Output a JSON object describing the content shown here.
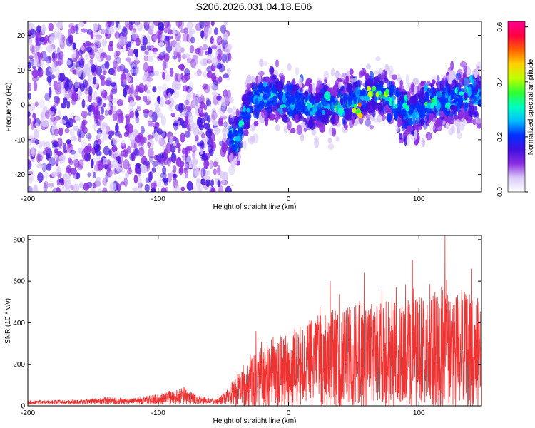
{
  "title": "S206.2026.031.04.18.E06",
  "chart_data": [
    {
      "type": "heatmap",
      "xlabel": "Height of straight line (km)",
      "ylabel": "Frequency (Hz)",
      "xlim": [
        -200,
        148
      ],
      "ylim": [
        -25,
        24
      ],
      "xticks": [
        -200,
        -100,
        0,
        100
      ],
      "xtick_labels": [
        "-200",
        "-100",
        "0",
        "100"
      ],
      "yticks": [
        -20,
        -10,
        0,
        10,
        20
      ],
      "ytick_labels": [
        "-20",
        "-10",
        "0",
        "10",
        "20"
      ],
      "grid": false,
      "colorbar": {
        "label": "Normalized spectral amplitude",
        "range": [
          0.0,
          0.62
        ],
        "ticks": [
          0.0,
          0.2,
          0.4,
          0.6
        ],
        "tick_labels": [
          "0.0",
          "0.2",
          "0.4",
          "0.6"
        ],
        "colors": [
          "#ffffff",
          "#d9c8f7",
          "#8a2be2",
          "#4010e0",
          "#0030ff",
          "#00bfff",
          "#00ffbf",
          "#30ff30",
          "#c0ff00",
          "#ffd000",
          "#ff6000",
          "#ff0040",
          "#ff0090"
        ]
      },
      "centerline": [
        {
          "x": -200,
          "y": 3
        },
        {
          "x": -150,
          "y": 2
        },
        {
          "x": -100,
          "y": 2
        },
        {
          "x": -75,
          "y": 0
        },
        {
          "x": -55,
          "y": -3
        },
        {
          "x": -45,
          "y": -9
        },
        {
          "x": -40,
          "y": -10
        },
        {
          "x": -35,
          "y": -4
        },
        {
          "x": -30,
          "y": 0
        },
        {
          "x": -20,
          "y": 2
        },
        {
          "x": -10,
          "y": 3
        },
        {
          "x": 0,
          "y": 1
        },
        {
          "x": 20,
          "y": -1
        },
        {
          "x": 40,
          "y": 0
        },
        {
          "x": 60,
          "y": 3
        },
        {
          "x": 70,
          "y": 3
        },
        {
          "x": 80,
          "y": 2
        },
        {
          "x": 95,
          "y": -3
        },
        {
          "x": 110,
          "y": 1
        },
        {
          "x": 130,
          "y": 2
        },
        {
          "x": 148,
          "y": 2
        }
      ],
      "hotspots": [
        {
          "x": 52,
          "y": -1,
          "value": 0.52
        },
        {
          "x": 55,
          "y": -2,
          "value": 0.5
        },
        {
          "x": 63,
          "y": 3,
          "value": 0.45
        },
        {
          "x": 68,
          "y": 4,
          "value": 0.42
        },
        {
          "x": 75,
          "y": 2,
          "value": 0.4
        },
        {
          "x": 40,
          "y": -1,
          "value": 0.38
        },
        {
          "x": 18,
          "y": 0,
          "value": 0.35
        },
        {
          "x": -33,
          "y": -1,
          "value": 0.33
        },
        {
          "x": -42,
          "y": -11,
          "value": 0.3
        },
        {
          "x": 130,
          "y": 3,
          "value": 0.32
        },
        {
          "x": 110,
          "y": 0,
          "value": 0.3
        },
        {
          "x": 90,
          "y": -1,
          "value": 0.34
        }
      ]
    },
    {
      "type": "line",
      "xlabel": "Height of straight line (km)",
      "ylabel": "SNR (10 * v/v)",
      "xlim": [
        -200,
        148
      ],
      "ylim": [
        0,
        820
      ],
      "xticks": [
        -200,
        -100,
        0,
        100
      ],
      "xtick_labels": [
        "-200",
        "-100",
        "0",
        "100"
      ],
      "yticks": [
        0,
        200,
        400,
        600,
        800
      ],
      "ytick_labels": [
        "0",
        "200",
        "400",
        "600",
        "800"
      ],
      "grid": false,
      "series": [
        {
          "color": "#ee3333",
          "envelope": [
            {
              "x": -200,
              "y": 25
            },
            {
              "x": -160,
              "y": 30
            },
            {
              "x": -140,
              "y": 50
            },
            {
              "x": -120,
              "y": 40
            },
            {
              "x": -100,
              "y": 70
            },
            {
              "x": -80,
              "y": 120
            },
            {
              "x": -70,
              "y": 60
            },
            {
              "x": -55,
              "y": 40
            },
            {
              "x": -40,
              "y": 150
            },
            {
              "x": -25,
              "y": 300
            },
            {
              "x": -10,
              "y": 380
            },
            {
              "x": 0,
              "y": 400
            },
            {
              "x": 20,
              "y": 480
            },
            {
              "x": 40,
              "y": 550
            },
            {
              "x": 60,
              "y": 560
            },
            {
              "x": 80,
              "y": 580
            },
            {
              "x": 100,
              "y": 600
            },
            {
              "x": 120,
              "y": 650
            },
            {
              "x": 148,
              "y": 620
            }
          ],
          "peaks": [
            {
              "x": -25,
              "y": 360
            },
            {
              "x": 32,
              "y": 600
            },
            {
              "x": 58,
              "y": 640
            },
            {
              "x": 95,
              "y": 700
            },
            {
              "x": 120,
              "y": 820
            },
            {
              "x": 140,
              "y": 660
            }
          ]
        }
      ]
    }
  ]
}
